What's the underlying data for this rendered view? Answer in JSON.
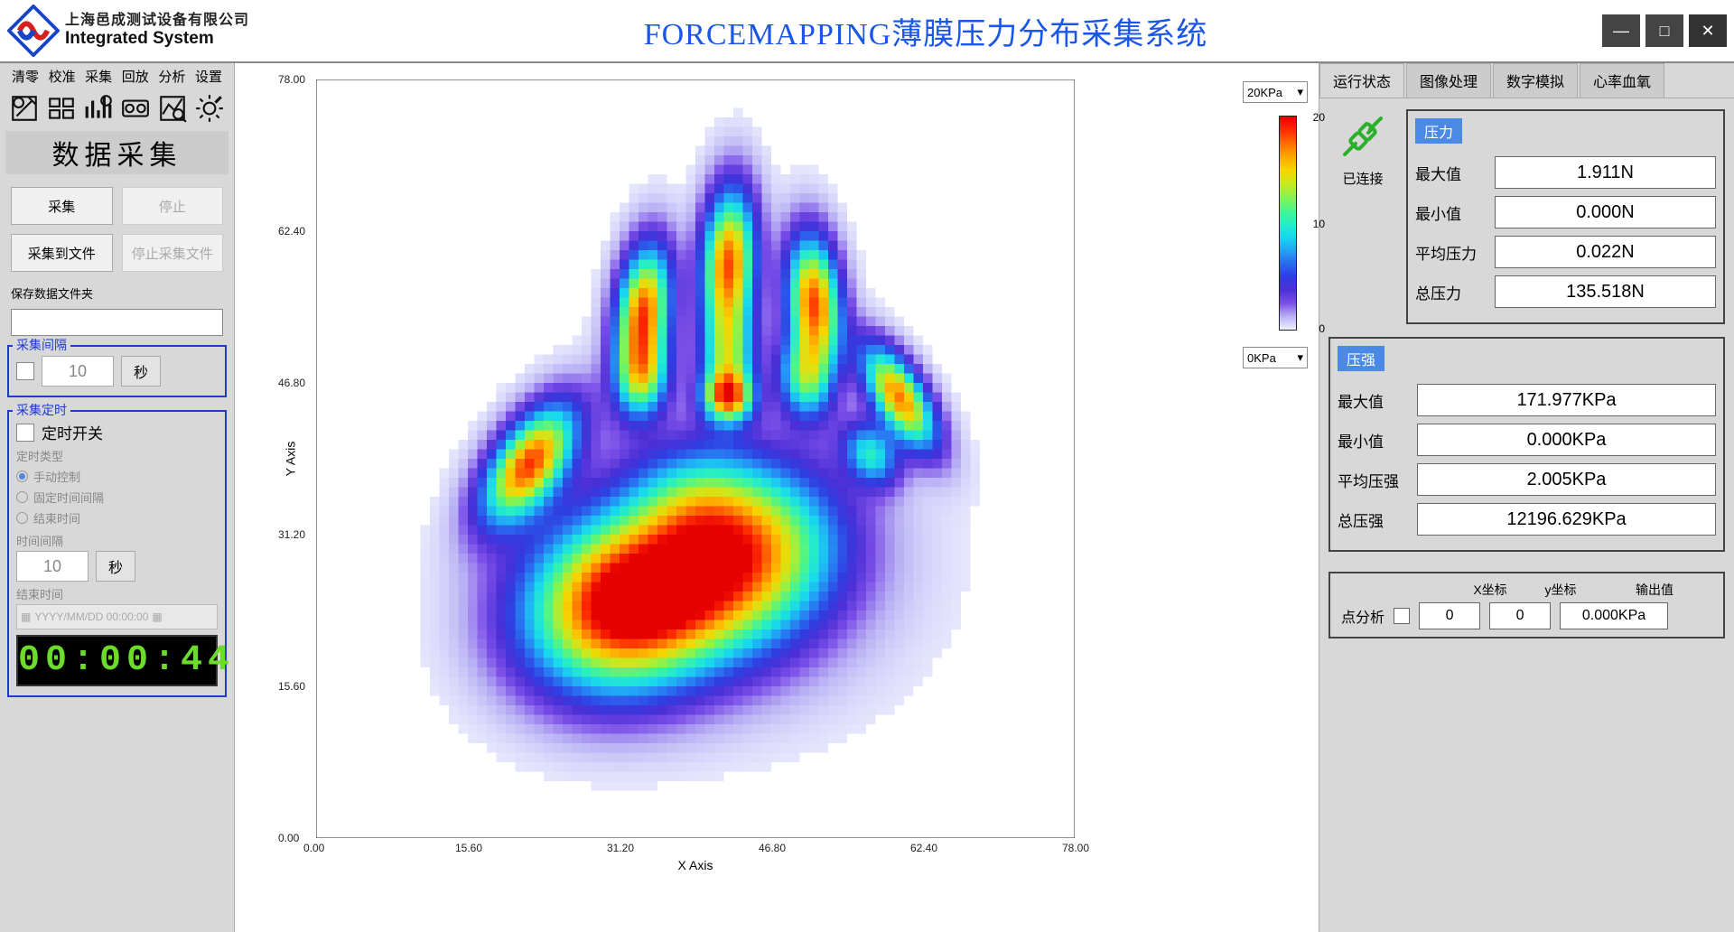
{
  "header": {
    "company_cn": "上海邑成测试设备有限公司",
    "company_en": "Integrated System",
    "app_title": "FORCEMAPPING薄膜压力分布采集系统"
  },
  "menu": {
    "items": [
      "清零",
      "校准",
      "采集",
      "回放",
      "分析",
      "设置"
    ]
  },
  "sidebar": {
    "panel_title": "数据采集",
    "btn_collect": "采集",
    "btn_stop": "停止",
    "btn_collect_file": "采集到文件",
    "btn_stop_collect_file": "停止采集文件",
    "save_folder_label": "保存数据文件夹",
    "interval": {
      "legend": "采集间隔",
      "value": "10",
      "unit": "秒"
    },
    "timer": {
      "legend": "采集定时",
      "switch_label": "定时开关",
      "type_label": "定时类型",
      "opt_manual": "手动控制",
      "opt_fixed": "固定时间间隔",
      "opt_end": "结束时间",
      "interval_label": "时间间隔",
      "interval_value": "10",
      "interval_unit": "秒",
      "endtime_label": "结束时间",
      "endtime_placeholder": "YYYY/MM/DD 00:00:00",
      "lcd": "00:00:44"
    }
  },
  "chart": {
    "x_label": "X Axis",
    "y_label": "Y Axis",
    "scale_max": "20KPa",
    "scale_min": "0KPa",
    "xlim": [
      0,
      78
    ],
    "ylim": [
      0,
      78
    ],
    "ticks": [
      "0.00",
      "15.60",
      "31.20",
      "46.80",
      "62.40",
      "78.00"
    ],
    "colorbar_ticks": [
      "20",
      "10",
      "0"
    ],
    "background_color": "#ffffff",
    "grid_size": 80,
    "colormap": [
      "#ffffff",
      "#eef0ff",
      "#b9b0f4",
      "#7a4ee8",
      "#4b2fd6",
      "#2f3de0",
      "#2a6cf0",
      "#22a6f6",
      "#18d8ee",
      "#28eec4",
      "#4cf58a",
      "#8cf24a",
      "#c9e820",
      "#f7d400",
      "#ffa600",
      "#ff6b00",
      "#ff2a00",
      "#e60000"
    ],
    "hand_shape_note": "heatmap of palm-down handprint with 5 fingers; palm lower-left is highest pressure",
    "render_cols": 80,
    "render_rows": 80
  },
  "right": {
    "tabs": [
      "运行状态",
      "图像处理",
      "数字模拟",
      "心率血氧"
    ],
    "active_tab": 0,
    "connected_label": "已连接",
    "pressure_group": {
      "title": "压力",
      "rows": [
        {
          "label": "最大值",
          "value": "1.911N"
        },
        {
          "label": "最小值",
          "value": "0.000N"
        },
        {
          "label": "平均压力",
          "value": "0.022N"
        },
        {
          "label": "总压力",
          "value": "135.518N"
        }
      ]
    },
    "intensity_group": {
      "title": "压强",
      "rows": [
        {
          "label": "最大值",
          "value": "171.977KPa"
        },
        {
          "label": "最小值",
          "value": "0.000KPa"
        },
        {
          "label": "平均压强",
          "value": "2.005KPa"
        },
        {
          "label": "总压强",
          "value": "12196.629KPa"
        }
      ]
    },
    "point": {
      "label": "点分析",
      "x_header": "X坐标",
      "y_header": "y坐标",
      "out_header": "输出值",
      "x": "0",
      "y": "0",
      "out": "0.000KPa"
    }
  }
}
